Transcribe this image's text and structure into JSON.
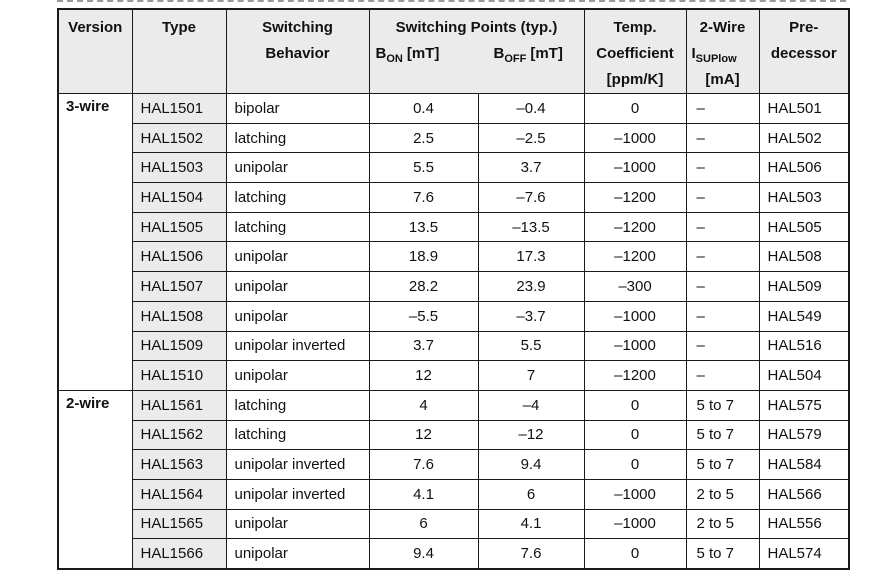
{
  "colors": {
    "header_bg": "#ebebeb",
    "type_col_bg": "#ebebeb",
    "border": "#1a1a1a",
    "text": "#111111"
  },
  "table": {
    "header": {
      "version": "Version",
      "type": "Type",
      "behavior_line1": "Switching",
      "behavior_line2": "Behavior",
      "points_title": "Switching Points (typ.)",
      "bon": {
        "base": "B",
        "sub": "ON",
        "unit": "[mT]"
      },
      "boff": {
        "base": "B",
        "sub": "OFF",
        "unit": "[mT]"
      },
      "temp_line1": "Temp.",
      "temp_line2": "Coefficient",
      "temp_line3": "[ppm/K]",
      "twowire_line1": "2-Wire",
      "isup_base": "I",
      "isup_sub": "SUPlow",
      "twowire_unit": "[mA]",
      "pred_line1": "Pre-",
      "pred_line2": "decessor"
    },
    "sections": [
      {
        "version": "3-wire",
        "rows": [
          {
            "type": "HAL1501",
            "behavior": "bipolar",
            "bon": "0.4",
            "boff": "–0.4",
            "temp": "0",
            "isup": "–",
            "pred": "HAL501"
          },
          {
            "type": "HAL1502",
            "behavior": "latching",
            "bon": "2.5",
            "boff": "–2.5",
            "temp": "–1000",
            "isup": "–",
            "pred": "HAL502"
          },
          {
            "type": "HAL1503",
            "behavior": "unipolar",
            "bon": "5.5",
            "boff": "3.7",
            "temp": "–1000",
            "isup": "–",
            "pred": "HAL506"
          },
          {
            "type": "HAL1504",
            "behavior": "latching",
            "bon": "7.6",
            "boff": "–7.6",
            "temp": "–1200",
            "isup": "–",
            "pred": "HAL503"
          },
          {
            "type": "HAL1505",
            "behavior": "latching",
            "bon": "13.5",
            "boff": "–13.5",
            "temp": "–1200",
            "isup": "–",
            "pred": "HAL505"
          },
          {
            "type": "HAL1506",
            "behavior": "unipolar",
            "bon": "18.9",
            "boff": "17.3",
            "temp": "–1200",
            "isup": "–",
            "pred": "HAL508"
          },
          {
            "type": "HAL1507",
            "behavior": "unipolar",
            "bon": "28.2",
            "boff": "23.9",
            "temp": "–300",
            "isup": "–",
            "pred": "HAL509"
          },
          {
            "type": "HAL1508",
            "behavior": "unipolar",
            "bon": "–5.5",
            "boff": "–3.7",
            "temp": "–1000",
            "isup": "–",
            "pred": "HAL549"
          },
          {
            "type": "HAL1509",
            "behavior": "unipolar inverted",
            "bon": "3.7",
            "boff": "5.5",
            "temp": "–1000",
            "isup": "–",
            "pred": "HAL516"
          },
          {
            "type": "HAL1510",
            "behavior": "unipolar",
            "bon": "12",
            "boff": "7",
            "temp": "–1200",
            "isup": "–",
            "pred": "HAL504"
          }
        ]
      },
      {
        "version": "2-wire",
        "rows": [
          {
            "type": "HAL1561",
            "behavior": "latching",
            "bon": "4",
            "boff": "–4",
            "temp": "0",
            "isup": "5 to 7",
            "pred": "HAL575"
          },
          {
            "type": "HAL1562",
            "behavior": "latching",
            "bon": "12",
            "boff": "–12",
            "temp": "0",
            "isup": "5 to 7",
            "pred": "HAL579"
          },
          {
            "type": "HAL1563",
            "behavior": "unipolar inverted",
            "bon": "7.6",
            "boff": "9.4",
            "temp": "0",
            "isup": "5 to 7",
            "pred": "HAL584"
          },
          {
            "type": "HAL1564",
            "behavior": "unipolar inverted",
            "bon": "4.1",
            "boff": "6",
            "temp": "–1000",
            "isup": "2 to 5",
            "pred": "HAL566"
          },
          {
            "type": "HAL1565",
            "behavior": "unipolar",
            "bon": "6",
            "boff": "4.1",
            "temp": "–1000",
            "isup": "2 to 5",
            "pred": "HAL556"
          },
          {
            "type": "HAL1566",
            "behavior": "unipolar",
            "bon": "9.4",
            "boff": "7.6",
            "temp": "0",
            "isup": "5 to 7",
            "pred": "HAL574"
          }
        ]
      }
    ]
  }
}
